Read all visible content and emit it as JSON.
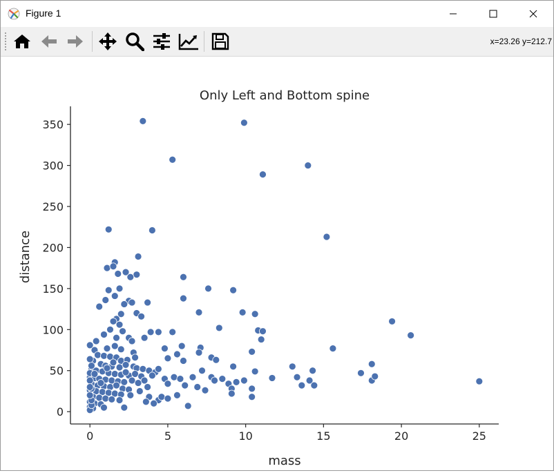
{
  "window": {
    "title": "Figure 1",
    "icons": {
      "app": "matplotlib-icon",
      "minimize": "minimize-icon",
      "maximize": "maximize-icon",
      "close": "close-icon"
    }
  },
  "toolbar": {
    "buttons": [
      {
        "name": "home-button",
        "icon": "home-icon",
        "tooltip": "Reset original view"
      },
      {
        "name": "back-button",
        "icon": "arrow-left-icon",
        "tooltip": "Back"
      },
      {
        "name": "forward-button",
        "icon": "arrow-right-icon",
        "tooltip": "Forward"
      },
      {
        "name": "pan-button",
        "icon": "move-icon",
        "tooltip": "Pan"
      },
      {
        "name": "zoom-button",
        "icon": "magnifier-icon",
        "tooltip": "Zoom"
      },
      {
        "name": "configure-button",
        "icon": "sliders-icon",
        "tooltip": "Configure subplots"
      },
      {
        "name": "edit-axes-button",
        "icon": "chart-line-icon",
        "tooltip": "Edit axis"
      },
      {
        "name": "save-button",
        "icon": "floppy-disk-icon",
        "tooltip": "Save"
      }
    ],
    "coordinates": "x=23.26 y=212.7"
  },
  "chart_data": {
    "type": "scatter",
    "title": "Only Left and Bottom spine",
    "xlabel": "mass",
    "ylabel": "distance",
    "xlim": [
      -1.25,
      26.25
    ],
    "ylim": [
      -15,
      372
    ],
    "xticks": [
      0,
      5,
      10,
      15,
      20,
      25
    ],
    "yticks": [
      0,
      50,
      100,
      150,
      200,
      250,
      300,
      350
    ],
    "grid": false,
    "spines": "left and bottom only",
    "marker_color": "#4c72b0",
    "marker_edge_color": "#ffffff",
    "points": [
      [
        3.4,
        354
      ],
      [
        9.9,
        352
      ],
      [
        5.3,
        307
      ],
      [
        14.0,
        300
      ],
      [
        11.1,
        289
      ],
      [
        1.2,
        222
      ],
      [
        4.0,
        221
      ],
      [
        15.2,
        213
      ],
      [
        3.1,
        189
      ],
      [
        1.6,
        182
      ],
      [
        1.1,
        175
      ],
      [
        1.5,
        177
      ],
      [
        2.3,
        170
      ],
      [
        1.8,
        168
      ],
      [
        3.0,
        167
      ],
      [
        2.6,
        164
      ],
      [
        6.0,
        164
      ],
      [
        7.6,
        150
      ],
      [
        9.2,
        148
      ],
      [
        1.2,
        148
      ],
      [
        1.9,
        150
      ],
      [
        1.6,
        141
      ],
      [
        1.0,
        136
      ],
      [
        6.0,
        138
      ],
      [
        3.7,
        133
      ],
      [
        0.6,
        128
      ],
      [
        2.5,
        135
      ],
      [
        2.7,
        133
      ],
      [
        2.2,
        131
      ],
      [
        3.0,
        120
      ],
      [
        7.0,
        121
      ],
      [
        9.8,
        121
      ],
      [
        10.6,
        119
      ],
      [
        2.0,
        119
      ],
      [
        3.3,
        116
      ],
      [
        1.7,
        113
      ],
      [
        1.5,
        110
      ],
      [
        1.9,
        106
      ],
      [
        19.4,
        110
      ],
      [
        8.3,
        102
      ],
      [
        10.8,
        99
      ],
      [
        11.1,
        98
      ],
      [
        1.3,
        100
      ],
      [
        2.1,
        98
      ],
      [
        3.9,
        97
      ],
      [
        4.4,
        97
      ],
      [
        5.3,
        97
      ],
      [
        20.6,
        93
      ],
      [
        11.0,
        88
      ],
      [
        3.5,
        90
      ],
      [
        2.5,
        90
      ],
      [
        1.7,
        90
      ],
      [
        0.9,
        94
      ],
      [
        2.7,
        86
      ],
      [
        15.6,
        77
      ],
      [
        0.0,
        81
      ],
      [
        0.4,
        86
      ],
      [
        5.9,
        80
      ],
      [
        4.8,
        77
      ],
      [
        7.1,
        78
      ],
      [
        0.3,
        75
      ],
      [
        1.1,
        77
      ],
      [
        1.6,
        80
      ],
      [
        2.0,
        76
      ],
      [
        2.8,
        72
      ],
      [
        10.4,
        73
      ],
      [
        5.6,
        70
      ],
      [
        7.8,
        66
      ],
      [
        8.1,
        63
      ],
      [
        7.0,
        72
      ],
      [
        0.5,
        69
      ],
      [
        0.9,
        68
      ],
      [
        1.3,
        67
      ],
      [
        1.7,
        66
      ],
      [
        2.0,
        62
      ],
      [
        2.4,
        63
      ],
      [
        5.0,
        65
      ],
      [
        6.0,
        62
      ],
      [
        0.2,
        62
      ],
      [
        0.7,
        58
      ],
      [
        1.0,
        56
      ],
      [
        1.4,
        55
      ],
      [
        1.9,
        54
      ],
      [
        2.3,
        57
      ],
      [
        2.8,
        55
      ],
      [
        3.0,
        53
      ],
      [
        3.4,
        52
      ],
      [
        3.8,
        50
      ],
      [
        4.2,
        48
      ],
      [
        0.1,
        52
      ],
      [
        0.4,
        50
      ],
      [
        0.8,
        49
      ],
      [
        1.2,
        47
      ],
      [
        1.6,
        46
      ],
      [
        2.0,
        45
      ],
      [
        2.5,
        44
      ],
      [
        2.9,
        46
      ],
      [
        3.3,
        43
      ],
      [
        0.0,
        42
      ],
      [
        0.3,
        41
      ],
      [
        0.6,
        40
      ],
      [
        1.0,
        39
      ],
      [
        1.4,
        38
      ],
      [
        1.8,
        37
      ],
      [
        2.2,
        36
      ],
      [
        2.7,
        38
      ],
      [
        3.1,
        35
      ],
      [
        0.1,
        34
      ],
      [
        0.5,
        32
      ],
      [
        0.9,
        31
      ],
      [
        1.3,
        30
      ],
      [
        1.7,
        32
      ],
      [
        2.1,
        28
      ],
      [
        2.5,
        27
      ],
      [
        0.0,
        26
      ],
      [
        0.4,
        25
      ],
      [
        0.8,
        24
      ],
      [
        1.2,
        23
      ],
      [
        1.6,
        22
      ],
      [
        2.0,
        21
      ],
      [
        0.2,
        18
      ],
      [
        0.6,
        17
      ],
      [
        1.0,
        16
      ],
      [
        1.4,
        15
      ],
      [
        1.9,
        14
      ],
      [
        0.0,
        12
      ],
      [
        0.3,
        10
      ],
      [
        0.7,
        9
      ],
      [
        0.0,
        6
      ],
      [
        0.2,
        4
      ],
      [
        0.0,
        2
      ],
      [
        0.1,
        8
      ],
      [
        0.1,
        14
      ],
      [
        0.0,
        20
      ],
      [
        0.1,
        28
      ],
      [
        0.0,
        38
      ],
      [
        0.0,
        47
      ],
      [
        0.1,
        56
      ],
      [
        0.0,
        64
      ],
      [
        0.0,
        30
      ],
      [
        3.8,
        18
      ],
      [
        4.4,
        14
      ],
      [
        3.6,
        12
      ],
      [
        4.1,
        10
      ],
      [
        4.6,
        18
      ],
      [
        5.0,
        16
      ],
      [
        5.6,
        20
      ],
      [
        6.3,
        7
      ],
      [
        6.1,
        32
      ],
      [
        6.9,
        30
      ],
      [
        7.4,
        26
      ],
      [
        6.6,
        42
      ],
      [
        7.8,
        42
      ],
      [
        7.2,
        50
      ],
      [
        8.0,
        38
      ],
      [
        8.5,
        40
      ],
      [
        8.9,
        34
      ],
      [
        9.1,
        28
      ],
      [
        9.4,
        36
      ],
      [
        9.1,
        22
      ],
      [
        9.9,
        38
      ],
      [
        10.4,
        28
      ],
      [
        10.4,
        18
      ],
      [
        9.2,
        55
      ],
      [
        10.6,
        49
      ],
      [
        11.7,
        41
      ],
      [
        13.0,
        55
      ],
      [
        13.3,
        42
      ],
      [
        13.6,
        32
      ],
      [
        14.1,
        38
      ],
      [
        14.3,
        50
      ],
      [
        14.4,
        32
      ],
      [
        17.4,
        47
      ],
      [
        18.1,
        58
      ],
      [
        18.1,
        38
      ],
      [
        18.3,
        43
      ],
      [
        25.0,
        37
      ],
      [
        4.8,
        40
      ],
      [
        5.0,
        34
      ],
      [
        5.4,
        42
      ],
      [
        5.8,
        40
      ],
      [
        3.2,
        25
      ],
      [
        2.6,
        20
      ],
      [
        2.2,
        5
      ],
      [
        0.9,
        5
      ],
      [
        3.5,
        38
      ],
      [
        4.0,
        44
      ],
      [
        4.4,
        52
      ],
      [
        3.7,
        30
      ],
      [
        0.7,
        35
      ],
      [
        1.5,
        60
      ],
      [
        2.3,
        48
      ],
      [
        1.1,
        53
      ],
      [
        0.3,
        46
      ],
      [
        2.9,
        66
      ]
    ]
  }
}
